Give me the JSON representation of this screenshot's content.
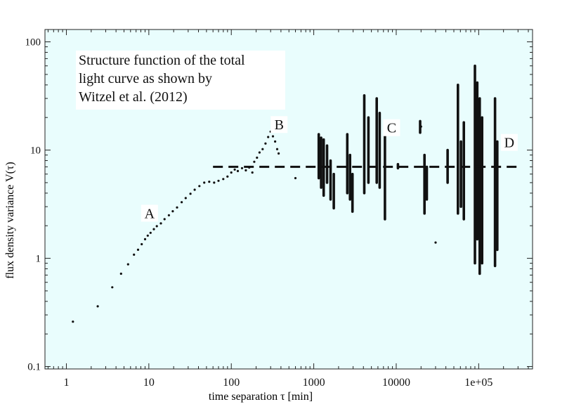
{
  "chart_data": {
    "type": "scatter",
    "title": "",
    "annotation_lines": [
      "Structure function of the total",
      "light curve as shown by",
      "Witzel et al. (2012)"
    ],
    "xlabel": "time separation  τ [min]",
    "ylabel": "flux density variance   V(τ)",
    "xscale": "log",
    "yscale": "log",
    "xlim": [
      0.55,
      450000
    ],
    "ylim": [
      0.095,
      130
    ],
    "xticks": [
      1,
      10,
      100,
      1000,
      10000,
      100000
    ],
    "xtick_labels": [
      "1",
      "10",
      "100",
      "1000",
      "10000",
      "1e+05"
    ],
    "yticks": [
      0.1,
      1,
      10,
      100
    ],
    "ytick_labels": [
      "0.1",
      "1",
      "10",
      "100"
    ],
    "grid": false,
    "legend": "none",
    "background_color": "#e9fdfd",
    "marker_color": "#111111",
    "reference_line": {
      "y": 7.0,
      "x_from": 60,
      "x_to": 300000,
      "style": "dashed"
    },
    "region_labels": [
      {
        "text": "A",
        "x": 10.2,
        "y": 2.35
      },
      {
        "text": "B",
        "x": 380,
        "y": 15.5
      },
      {
        "text": "C",
        "x": 8800,
        "y": 14.5
      },
      {
        "text": "D",
        "x": 235000,
        "y": 10.6
      }
    ],
    "series": [
      {
        "type": "points",
        "points": [
          [
            1.2,
            0.26
          ],
          [
            2.4,
            0.36
          ],
          [
            3.6,
            0.54
          ],
          [
            4.6,
            0.72
          ],
          [
            5.6,
            0.88
          ],
          [
            6.6,
            1.08
          ],
          [
            7.4,
            1.2
          ],
          [
            8.2,
            1.35
          ],
          [
            9.0,
            1.5
          ],
          [
            9.7,
            1.62
          ],
          [
            10.5,
            1.72
          ],
          [
            11.5,
            1.86
          ],
          [
            12.5,
            1.98
          ],
          [
            14.0,
            2.1
          ],
          [
            15.5,
            2.3
          ],
          [
            17.5,
            2.5
          ],
          [
            19.5,
            2.72
          ],
          [
            22.0,
            2.95
          ],
          [
            25.0,
            3.3
          ],
          [
            28.0,
            3.6
          ],
          [
            32.0,
            3.95
          ],
          [
            36.0,
            4.3
          ],
          [
            41.0,
            4.65
          ],
          [
            47.0,
            5.0
          ],
          [
            54.0,
            5.1
          ],
          [
            62.0,
            5.0
          ],
          [
            70.0,
            5.2
          ],
          [
            80.0,
            5.4
          ],
          [
            90.0,
            5.7
          ],
          [
            100.0,
            6.2
          ],
          [
            110.0,
            6.6
          ],
          [
            120.0,
            6.4
          ],
          [
            135.0,
            6.8
          ],
          [
            150.0,
            6.5
          ],
          [
            165.0,
            6.9
          ],
          [
            180.0,
            6.2
          ],
          [
            190.0,
            7.8
          ],
          [
            205.0,
            8.5
          ],
          [
            220.0,
            9.5
          ],
          [
            240.0,
            10.2
          ],
          [
            260.0,
            11.5
          ],
          [
            280.0,
            13.2
          ],
          [
            300.0,
            14.8
          ],
          [
            320.0,
            13.4
          ],
          [
            340.0,
            12.0
          ],
          [
            360.0,
            10.2
          ],
          [
            375.0,
            9.3
          ],
          [
            20000.0,
            16.5
          ],
          [
            30000.0,
            1.4
          ],
          [
            600.0,
            5.5
          ]
        ]
      },
      {
        "type": "vertical_clusters",
        "clusters": [
          {
            "x": 1150,
            "y": [
              5.5,
              14.0
            ]
          },
          {
            "x": 1230,
            "y": [
              4.5,
              13.0
            ]
          },
          {
            "x": 1320,
            "y": [
              3.8,
              12.5
            ]
          },
          {
            "x": 1450,
            "y": [
              5.0,
              11.0
            ]
          },
          {
            "x": 1600,
            "y": [
              3.5,
              8.0
            ]
          },
          {
            "x": 1750,
            "y": [
              2.9,
              6.0
            ]
          },
          {
            "x": 2550,
            "y": [
              4.0,
              14.0
            ]
          },
          {
            "x": 2750,
            "y": [
              3.5,
              9.0
            ]
          },
          {
            "x": 2950,
            "y": [
              2.7,
              6.0
            ]
          },
          {
            "x": 4100,
            "y": [
              4.0,
              32.0
            ]
          },
          {
            "x": 4600,
            "y": [
              5.0,
              20.0
            ]
          },
          {
            "x": 5800,
            "y": [
              5.0,
              30.0
            ]
          },
          {
            "x": 6300,
            "y": [
              4.5,
              22.0
            ]
          },
          {
            "x": 7300,
            "y": [
              2.3,
              14.0
            ]
          },
          {
            "x": 10500,
            "y": [
              6.8,
              7.4
            ]
          },
          {
            "x": 19500,
            "y": [
              14.5,
              18.5
            ]
          },
          {
            "x": 22000,
            "y": [
              2.6,
              9.0
            ]
          },
          {
            "x": 23500,
            "y": [
              3.5,
              7.0
            ]
          },
          {
            "x": 42000,
            "y": [
              5.0,
              10.0
            ]
          },
          {
            "x": 56000,
            "y": [
              2.6,
              40.0
            ]
          },
          {
            "x": 61000,
            "y": [
              3.0,
              12.0
            ]
          },
          {
            "x": 66000,
            "y": [
              2.3,
              18.0
            ]
          },
          {
            "x": 90000,
            "y": [
              0.9,
              60.0
            ]
          },
          {
            "x": 96000,
            "y": [
              1.5,
              42.0
            ]
          },
          {
            "x": 103000,
            "y": [
              0.72,
              30.0
            ]
          },
          {
            "x": 110000,
            "y": [
              0.9,
              20.0
            ]
          },
          {
            "x": 158000,
            "y": [
              0.85,
              30.0
            ]
          },
          {
            "x": 168000,
            "y": [
              1.2,
              12.0
            ]
          }
        ]
      }
    ]
  }
}
